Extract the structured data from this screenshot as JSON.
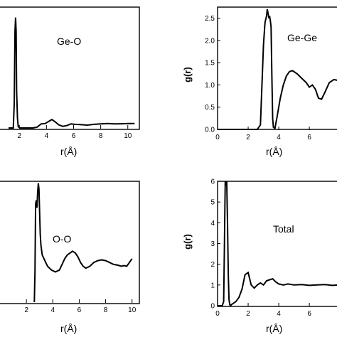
{
  "chart_data": [
    {
      "type": "line",
      "panel_label": "Ge-O",
      "xlabel": "r(Å)",
      "ylabel": "",
      "xlim": [
        1.2,
        10.8
      ],
      "ylim": [
        0,
        15
      ],
      "xticks": [
        {
          "v": 2,
          "t": "2"
        },
        {
          "v": 4,
          "t": "4"
        },
        {
          "v": 6,
          "t": "6"
        },
        {
          "v": 8,
          "t": "8"
        },
        {
          "v": 10,
          "t": "10"
        }
      ],
      "yticks": [],
      "x": [
        1.2,
        1.55,
        1.62,
        1.68,
        1.72,
        1.76,
        1.8,
        1.86,
        1.92,
        2.05,
        2.5,
        3.0,
        3.3,
        3.6,
        3.9,
        4.2,
        4.4,
        4.65,
        4.9,
        5.2,
        5.5,
        5.8,
        6.1,
        6.5,
        7.0,
        7.5,
        8.0,
        8.5,
        9.0,
        9.5,
        10.0,
        10.5
      ],
      "values": [
        0,
        0,
        3.0,
        12.0,
        13.7,
        12.0,
        4.5,
        1.2,
        0.15,
        0,
        0,
        0,
        0.1,
        0.5,
        0.55,
        0.85,
        1.05,
        0.75,
        0.4,
        0.2,
        0.3,
        0.5,
        0.45,
        0.42,
        0.35,
        0.45,
        0.5,
        0.55,
        0.5,
        0.52,
        0.55,
        0.55
      ]
    },
    {
      "type": "line",
      "panel_label": "Ge-Ge",
      "xlabel": "r(Å)",
      "ylabel": "g(r)",
      "xlim": [
        0,
        7.9
      ],
      "ylim": [
        0,
        2.75
      ],
      "xticks": [
        {
          "v": 0,
          "t": "0"
        },
        {
          "v": 2,
          "t": "2"
        },
        {
          "v": 4,
          "t": "4"
        },
        {
          "v": 6,
          "t": "6"
        }
      ],
      "yticks": [
        {
          "v": 0,
          "t": "0.0"
        },
        {
          "v": 0.5,
          "t": "0.5"
        },
        {
          "v": 1.0,
          "t": "1.0"
        },
        {
          "v": 1.5,
          "t": "1.5"
        },
        {
          "v": 2.0,
          "t": "2.0"
        },
        {
          "v": 2.5,
          "t": "2.5"
        }
      ],
      "x": [
        0,
        2.6,
        2.8,
        3.0,
        3.1,
        3.2,
        3.25,
        3.3,
        3.35,
        3.4,
        3.45,
        3.5,
        3.55,
        3.6,
        3.65,
        3.75,
        3.9,
        4.1,
        4.3,
        4.5,
        4.7,
        4.9,
        5.2,
        5.5,
        5.8,
        6.0,
        6.2,
        6.4,
        6.6,
        6.8,
        7.0,
        7.3,
        7.6,
        7.9
      ],
      "values": [
        0,
        0,
        0.1,
        1.9,
        2.4,
        2.55,
        2.7,
        2.62,
        2.5,
        2.55,
        2.45,
        2.3,
        1.2,
        0.25,
        0.05,
        0.02,
        0.3,
        0.7,
        1.0,
        1.2,
        1.3,
        1.32,
        1.25,
        1.15,
        1.05,
        0.95,
        1.0,
        0.9,
        0.7,
        0.68,
        0.82,
        1.05,
        1.12,
        1.1
      ]
    },
    {
      "type": "line",
      "panel_label": "O-O",
      "xlabel": "r(Å)",
      "ylabel": "",
      "xlim": [
        0,
        10.5
      ],
      "ylim": [
        0,
        3.2
      ],
      "xticks": [
        {
          "v": 2,
          "t": "2"
        },
        {
          "v": 4,
          "t": "4"
        },
        {
          "v": 6,
          "t": "6"
        },
        {
          "v": 8,
          "t": "8"
        },
        {
          "v": 10,
          "t": "10"
        }
      ],
      "yticks": [],
      "x": [
        2.6,
        2.65,
        2.7,
        2.75,
        2.8,
        2.85,
        2.9,
        2.95,
        3.0,
        3.05,
        3.1,
        3.2,
        3.4,
        3.6,
        3.9,
        4.2,
        4.5,
        4.7,
        4.9,
        5.1,
        5.3,
        5.5,
        5.7,
        5.9,
        6.1,
        6.3,
        6.5,
        6.8,
        7.1,
        7.4,
        7.7,
        8.0,
        8.3,
        8.6,
        8.9,
        9.2,
        9.4,
        9.6,
        9.8,
        10.0
      ],
      "values": [
        0.0,
        0.8,
        2.6,
        2.7,
        2.5,
        2.9,
        3.15,
        3.0,
        2.4,
        1.8,
        1.5,
        1.25,
        1.1,
        0.95,
        0.85,
        0.8,
        0.85,
        1.0,
        1.15,
        1.25,
        1.3,
        1.35,
        1.3,
        1.2,
        1.05,
        0.95,
        0.9,
        0.95,
        1.05,
        1.1,
        1.12,
        1.1,
        1.05,
        1.0,
        0.98,
        0.95,
        0.97,
        0.95,
        1.05,
        1.15
      ]
    },
    {
      "type": "line",
      "panel_label": "Total",
      "xlabel": "r(Å)",
      "ylabel": "g(r)",
      "xlim": [
        0,
        7.9
      ],
      "ylim": [
        0,
        6
      ],
      "xticks": [
        {
          "v": 0,
          "t": "0"
        },
        {
          "v": 2,
          "t": "2"
        },
        {
          "v": 4,
          "t": "4"
        },
        {
          "v": 6,
          "t": "6"
        }
      ],
      "yticks": [
        {
          "v": 0,
          "t": "0"
        },
        {
          "v": 1,
          "t": "1"
        },
        {
          "v": 2,
          "t": "2"
        },
        {
          "v": 3,
          "t": "3"
        },
        {
          "v": 4,
          "t": "4"
        },
        {
          "v": 5,
          "t": "5"
        },
        {
          "v": 6,
          "t": "6"
        }
      ],
      "x": [
        0,
        0.3,
        0.4,
        0.45,
        0.5,
        0.55,
        0.6,
        0.65,
        0.7,
        0.75,
        0.8,
        0.85,
        0.9,
        1.0,
        1.2,
        1.4,
        1.6,
        1.8,
        2.0,
        2.2,
        2.4,
        2.6,
        2.8,
        3.0,
        3.2,
        3.4,
        3.6,
        3.8,
        4.0,
        4.3,
        4.6,
        5.0,
        5.5,
        6.0,
        6.5,
        7.0,
        7.5,
        7.9
      ],
      "values": [
        0,
        0,
        0.2,
        3.0,
        6.0,
        5.8,
        6.0,
        4.0,
        1.5,
        0.3,
        0.05,
        0.0,
        0.05,
        0.1,
        0.2,
        0.4,
        0.8,
        1.5,
        1.6,
        1.0,
        0.85,
        1.0,
        1.1,
        1.0,
        1.2,
        1.25,
        1.3,
        1.15,
        1.05,
        1.0,
        1.05,
        1.0,
        1.02,
        0.98,
        1.0,
        1.02,
        0.98,
        1.0
      ]
    }
  ]
}
